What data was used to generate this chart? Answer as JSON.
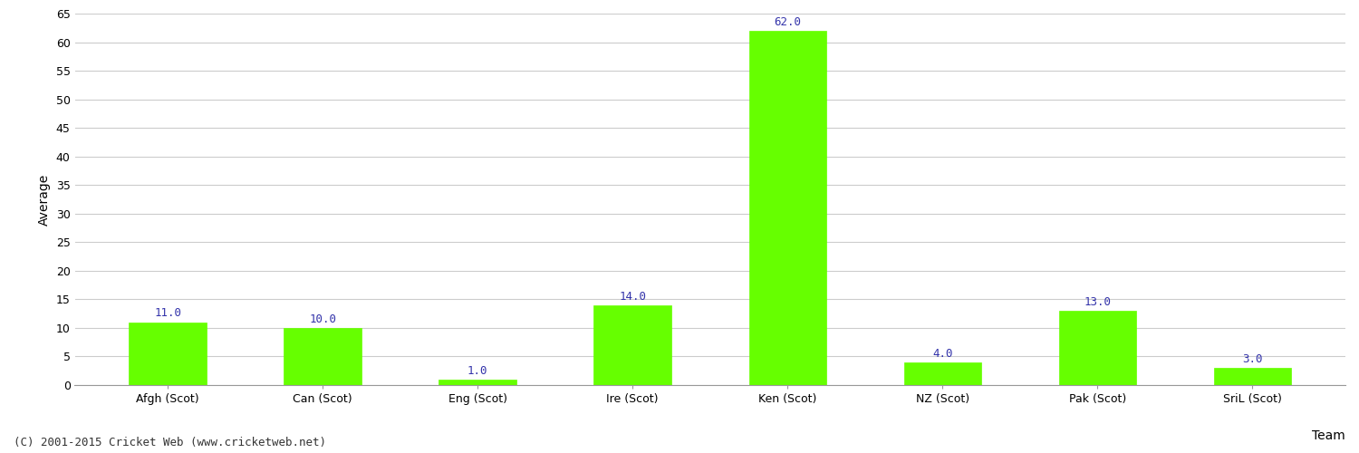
{
  "categories": [
    "Afgh (Scot)",
    "Can (Scot)",
    "Eng (Scot)",
    "Ire (Scot)",
    "Ken (Scot)",
    "NZ (Scot)",
    "Pak (Scot)",
    "SriL (Scot)"
  ],
  "values": [
    11.0,
    10.0,
    1.0,
    14.0,
    62.0,
    4.0,
    13.0,
    3.0
  ],
  "bar_color": "#66ff00",
  "bar_edge_color": "#66ff00",
  "value_label_color": "#3333aa",
  "value_label_fontsize": 9,
  "xlabel": "Team",
  "ylabel": "Average",
  "ylim": [
    0,
    65
  ],
  "yticks": [
    0,
    5,
    10,
    15,
    20,
    25,
    30,
    35,
    40,
    45,
    50,
    55,
    60,
    65
  ],
  "grid_color": "#cccccc",
  "background_color": "#ffffff",
  "footer_text": "(C) 2001-2015 Cricket Web (www.cricketweb.net)",
  "footer_fontsize": 9,
  "footer_color": "#333333",
  "axis_label_fontsize": 10,
  "tick_fontsize": 9,
  "bar_width": 0.5
}
